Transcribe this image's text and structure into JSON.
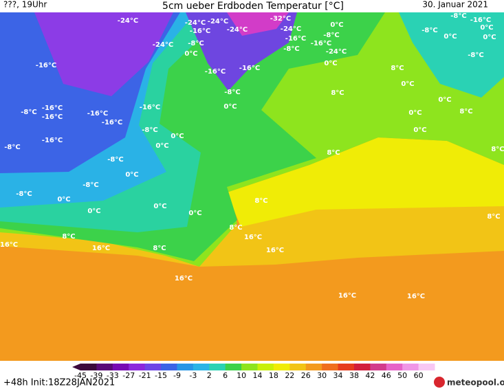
{
  "header": {
    "left": "???, 19Uhr",
    "title": "5cm ueber Erdboden Temperatur [°C]",
    "date": "30. Januar 2021"
  },
  "map_labels": [
    "-24°C",
    "-24°C",
    "-24°C",
    "-32°C",
    "-24°C",
    "-16°C",
    "-24°C",
    "-8°C",
    "0°C",
    "-8°C",
    "-16°C",
    "0°C",
    "-8°C",
    "0°C",
    "0°C",
    "-8°C",
    "-24°C",
    "-8°C",
    "-16°C",
    "-16°C",
    "-24°C",
    "-8°C",
    "0°C",
    "0°C",
    "-16°C",
    "-16°C",
    "-16°C",
    "8°C",
    "0°C",
    "-8°C",
    "8°C",
    "0°C",
    "0°C",
    "-8°C",
    "-16°C",
    "-16°C",
    "-16°C",
    "-16°C",
    "-16°C",
    "8°C",
    "0°C",
    "-8°C",
    "0°C",
    "0°C",
    "0°C",
    "-16°C",
    "-8°C",
    "8°C",
    "8°C",
    "-8°C",
    "0°C",
    "-8°C",
    "-8°C",
    "0°C",
    "8°C",
    "0°C",
    "0°C",
    "0°C",
    "8°C",
    "8°C",
    "8°C",
    "16°C",
    "16°C",
    "16°C",
    "8°C",
    "16°C",
    "16°C",
    "16°C",
    "16°C"
  ],
  "colorbar": {
    "ticks": [
      -45,
      -39,
      -33,
      -27,
      -21,
      -15,
      -9,
      -3,
      2,
      6,
      10,
      14,
      18,
      22,
      26,
      30,
      34,
      38,
      42,
      46,
      50,
      60
    ]
  },
  "footer": {
    "run": "+48h Init:18Z28JAN2021",
    "logo": "meteopool.org"
  }
}
